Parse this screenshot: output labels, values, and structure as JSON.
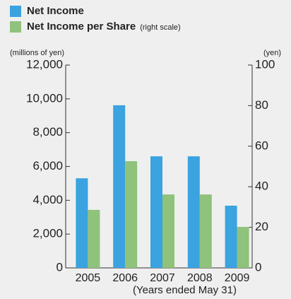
{
  "chart_data": {
    "type": "bar",
    "categories": [
      "2005",
      "2006",
      "2007",
      "2008",
      "2009"
    ],
    "series": [
      {
        "name": "Net Income",
        "color": "#3aa3e0",
        "values": [
          5300,
          9620,
          6600,
          6600,
          3680
        ]
      },
      {
        "name": "Net Income per Share",
        "color": "#8fc27a",
        "axis": "y2",
        "values": [
          28.6,
          52.6,
          36.2,
          36.2,
          20.2
        ]
      }
    ],
    "legend_note": "(right scale)",
    "ylabel": "(millions of yen)",
    "y2label": "(yen)",
    "xlabel": "(Years ended May 31)",
    "ylim": [
      0,
      12000
    ],
    "yticks": [
      0,
      {
        "value": 2000,
        "label": "2,000"
      },
      {
        "value": 4000,
        "label": "4,000"
      },
      {
        "value": 6000,
        "label": "6,000"
      },
      {
        "value": 8000,
        "label": "8,000"
      },
      {
        "value": 10000,
        "label": "10,000"
      },
      {
        "value": 12000,
        "label": "12,000"
      }
    ],
    "y2lim": [
      0,
      100
    ],
    "y2ticks": [
      0,
      20,
      40,
      60,
      80,
      100
    ],
    "legend": "top-left"
  }
}
